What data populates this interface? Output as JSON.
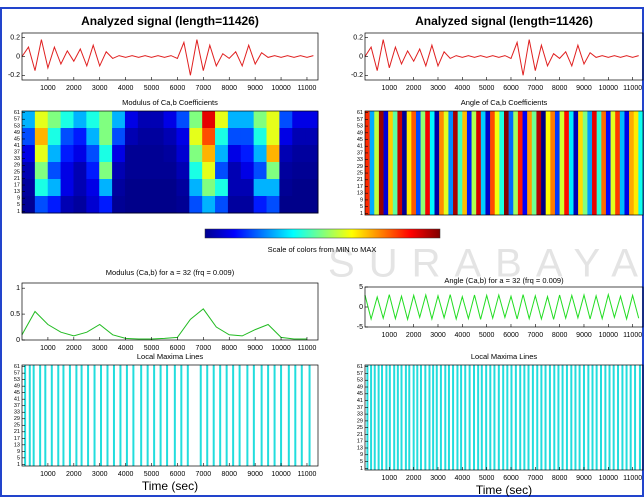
{
  "watermark": "SURABAYA",
  "colorbar_label": "Scale of colors from MIN to MAX",
  "chart_data": [
    {
      "type": "line",
      "title": "Analyzed signal (length=11426)",
      "color": "#e02020",
      "x": [
        0,
        250,
        500,
        750,
        1000,
        1250,
        1500,
        1750,
        2000,
        2250,
        2500,
        2750,
        3000,
        3250,
        3500,
        3750,
        4000,
        4250,
        4500,
        4750,
        5000,
        5250,
        5500,
        5750,
        6000,
        6250,
        6500,
        6750,
        7000,
        7250,
        7500,
        7750,
        8000,
        8250,
        8500,
        8750,
        9000,
        9250,
        9500,
        9750,
        10000,
        10250,
        10500,
        10750,
        11000,
        11250
      ],
      "values": [
        0,
        0.1,
        -0.15,
        0.18,
        -0.12,
        0.1,
        -0.08,
        0.06,
        -0.05,
        0.08,
        -0.1,
        0.12,
        -0.1,
        0.05,
        -0.02,
        0.01,
        -0.01,
        0.01,
        -0.01,
        0.01,
        -0.01,
        0.01,
        -0.01,
        0.01,
        -0.02,
        0.15,
        -0.2,
        0.18,
        -0.15,
        0.12,
        -0.1,
        0.03,
        -0.02,
        0.05,
        -0.1,
        0.12,
        -0.08,
        0.04,
        -0.01,
        0.01,
        -0.01,
        0.01,
        -0.01,
        0.01,
        -0.01,
        0.01
      ],
      "xlim": [
        0,
        11426
      ],
      "xticks": [
        1000,
        2000,
        3000,
        4000,
        5000,
        6000,
        7000,
        8000,
        9000,
        10000,
        11000
      ],
      "ylim": [
        -0.25,
        0.25
      ],
      "yticks": [
        -0.2,
        0,
        0.2
      ]
    },
    {
      "type": "heatmap",
      "title": "Modulus of Ca,b Coefficients",
      "z": [
        [
          0.3,
          0.6,
          0.5,
          0.4,
          0.3,
          0.4,
          0.5,
          0.3,
          0.1,
          0.05,
          0.05,
          0.1,
          0.2,
          0.5,
          0.9,
          0.6,
          0.3,
          0.3,
          0.5,
          0.6,
          0.2,
          0.1,
          0.1
        ],
        [
          0.2,
          0.7,
          0.4,
          0.2,
          0.15,
          0.3,
          0.5,
          0.2,
          0.05,
          0.03,
          0.03,
          0.05,
          0.1,
          0.6,
          0.8,
          0.4,
          0.2,
          0.2,
          0.4,
          0.6,
          0.1,
          0.05,
          0.05
        ],
        [
          0.1,
          0.6,
          0.3,
          0.15,
          0.1,
          0.2,
          0.4,
          0.1,
          0.02,
          0.02,
          0.02,
          0.03,
          0.08,
          0.5,
          0.7,
          0.3,
          0.1,
          0.15,
          0.3,
          0.7,
          0.05,
          0.03,
          0.03
        ],
        [
          0.05,
          0.5,
          0.2,
          0.1,
          0.05,
          0.15,
          0.5,
          0.05,
          0.02,
          0.02,
          0.02,
          0.02,
          0.05,
          0.4,
          0.6,
          0.2,
          0.05,
          0.1,
          0.2,
          0.5,
          0.03,
          0.02,
          0.02
        ],
        [
          0.03,
          0.4,
          0.3,
          0.1,
          0.05,
          0.1,
          0.3,
          0.03,
          0.01,
          0.01,
          0.01,
          0.01,
          0.03,
          0.3,
          0.5,
          0.4,
          0.05,
          0.05,
          0.3,
          0.3,
          0.02,
          0.01,
          0.01
        ],
        [
          0.02,
          0.2,
          0.15,
          0.05,
          0.03,
          0.08,
          0.15,
          0.02,
          0.01,
          0.01,
          0.01,
          0.01,
          0.02,
          0.2,
          0.3,
          0.2,
          0.03,
          0.03,
          0.15,
          0.2,
          0.01,
          0.01,
          0.01
        ]
      ],
      "ylim": [
        0,
        62
      ],
      "yticks": [
        1,
        5,
        9,
        13,
        17,
        21,
        25,
        29,
        33,
        37,
        41,
        45,
        49,
        53,
        57,
        61
      ]
    },
    {
      "type": "line",
      "title": "Analyzed signal (length=11426)",
      "color": "#e02020",
      "x": [
        0,
        250,
        500,
        750,
        1000,
        1250,
        1500,
        1750,
        2000,
        2250,
        2500,
        2750,
        3000,
        3250,
        3500,
        3750,
        4000,
        4250,
        4500,
        4750,
        5000,
        5250,
        5500,
        5750,
        6000,
        6250,
        6500,
        6750,
        7000,
        7250,
        7500,
        7750,
        8000,
        8250,
        8500,
        8750,
        9000,
        9250,
        9500,
        9750,
        10000,
        10250,
        10500,
        10750,
        11000,
        11250
      ],
      "values": [
        0,
        0.1,
        -0.15,
        0.18,
        -0.12,
        0.1,
        -0.08,
        0.06,
        -0.05,
        0.08,
        -0.1,
        0.12,
        -0.1,
        0.05,
        -0.02,
        0.01,
        -0.01,
        0.01,
        -0.01,
        0.01,
        -0.01,
        0.01,
        -0.01,
        0.01,
        -0.02,
        0.15,
        -0.2,
        0.18,
        -0.15,
        0.12,
        -0.1,
        0.03,
        -0.02,
        0.05,
        -0.1,
        0.12,
        -0.08,
        0.04,
        -0.01,
        0.01,
        -0.01,
        0.01,
        -0.01,
        0.01,
        -0.01,
        0.01
      ],
      "xlim": [
        0,
        11426
      ],
      "xticks": [
        1000,
        2000,
        3000,
        4000,
        5000,
        6000,
        7000,
        8000,
        9000,
        10000,
        11000
      ],
      "ylim": [
        -0.25,
        0.25
      ],
      "yticks": [
        -0.2,
        0,
        0.2
      ]
    },
    {
      "type": "stripes",
      "title": "Angle of Ca,b Coefficients",
      "values": [
        2.1,
        -1.3,
        0.4,
        3.0,
        -2.6,
        1.1,
        -0.2,
        2.7,
        -3.0,
        0.9,
        1.8,
        -1.9,
        0.1,
        2.4,
        -0.8,
        -2.9,
        1.5,
        0.6,
        -1.5,
        2.9,
        -0.4,
        1.2,
        -2.2,
        0.3,
        2.6,
        -1.1,
        -2.7,
        1.9,
        0.7,
        -0.6,
        3.1,
        -1.7,
        0.2,
        2.2,
        -2.4,
        1.4,
        -0.1,
        2.8,
        -3.1,
        0.8,
        1.6,
        -2.0,
        0.5,
        2.3,
        -0.9,
        -2.8,
        1.0,
        0.0,
        -1.4,
        2.5,
        -0.5,
        1.7,
        -2.3,
        0.6,
        2.0,
        -1.2,
        -2.5,
        1.3,
        0.9,
        -0.7
      ],
      "ylim": [
        0,
        62
      ],
      "yticks": [
        1,
        5,
        9,
        13,
        17,
        21,
        25,
        29,
        33,
        37,
        41,
        45,
        49,
        53,
        57,
        61
      ]
    },
    {
      "type": "line",
      "title": "Modulus (Ca,b) for a = 32  (frq =  0.009)",
      "color": "#22bb22",
      "x": [
        0,
        500,
        1000,
        1500,
        2000,
        2500,
        3000,
        3500,
        4000,
        4500,
        5000,
        5500,
        6000,
        6500,
        7000,
        7500,
        8000,
        8500,
        9000,
        9500,
        10000,
        10500,
        11000
      ],
      "values": [
        0.1,
        0.55,
        0.3,
        0.15,
        0.08,
        0.15,
        0.3,
        0.1,
        0.03,
        0.02,
        0.02,
        0.03,
        0.05,
        0.4,
        0.6,
        0.25,
        0.1,
        0.08,
        0.2,
        0.3,
        0.05,
        0.02,
        0.02
      ],
      "xlim": [
        0,
        11426
      ],
      "xticks": [
        1000,
        2000,
        3000,
        4000,
        5000,
        6000,
        7000,
        8000,
        9000,
        10000,
        11000
      ],
      "ylim": [
        0,
        1.1
      ],
      "yticks": [
        0,
        0.5,
        1
      ]
    },
    {
      "type": "eventplot",
      "title": "Local Maxima Lines",
      "color": "#22dddd",
      "xlabel": "Time (sec)",
      "positions": [
        120,
        300,
        450,
        700,
        900,
        1150,
        1400,
        1600,
        1850,
        2100,
        2300,
        2550,
        2800,
        3050,
        3300,
        3550,
        3800,
        4050,
        4300,
        4600,
        4850,
        5100,
        5350,
        5600,
        5900,
        6150,
        6400,
        6900,
        7150,
        7400,
        7650,
        7900,
        8150,
        8400,
        8700,
        8950,
        9250,
        9500,
        9750,
        10000,
        10300,
        10550,
        10800,
        11100
      ],
      "xlim": [
        0,
        11426
      ],
      "xticks": [
        1000,
        2000,
        3000,
        4000,
        5000,
        6000,
        7000,
        8000,
        9000,
        10000,
        11000
      ],
      "ylim": [
        0,
        62
      ],
      "yticks": [
        1,
        5,
        9,
        13,
        17,
        21,
        25,
        29,
        33,
        37,
        41,
        45,
        49,
        53,
        57,
        61
      ]
    },
    {
      "type": "line",
      "title": "Angle (Ca,b) for a = 32  (frq =  0.009)",
      "color": "#22dd22",
      "x": [
        0,
        250,
        500,
        750,
        1000,
        1250,
        1500,
        1750,
        2000,
        2250,
        2500,
        2750,
        3000,
        3250,
        3500,
        3750,
        4000,
        4250,
        4500,
        4750,
        5000,
        5250,
        5500,
        5750,
        6000,
        6250,
        6500,
        6750,
        7000,
        7250,
        7500,
        7750,
        8000,
        8250,
        8500,
        8750,
        9000,
        9250,
        9500,
        9750,
        10000,
        10250,
        10500,
        10750,
        11000,
        11250
      ],
      "values": [
        3,
        -3,
        2.5,
        -2.8,
        3.1,
        -2.9,
        2.7,
        -3.1,
        2.9,
        -2.6,
        3,
        -3,
        2.8,
        -2.7,
        3.1,
        -3,
        2.6,
        -2.9,
        3,
        -3.1,
        2.9,
        -2.8,
        3,
        -2.6,
        2.7,
        -3,
        3.1,
        -2.9,
        2.8,
        -3,
        2.6,
        -3.1,
        3,
        -2.8,
        2.9,
        -2.7,
        3,
        -3,
        2.8,
        -2.9,
        3.1,
        -2.6,
        2.7,
        -3,
        2.9,
        -2.8
      ],
      "xlim": [
        0,
        11426
      ],
      "xticks": [
        1000,
        2000,
        3000,
        4000,
        5000,
        6000,
        7000,
        8000,
        9000,
        10000,
        11000
      ],
      "ylim": [
        -5,
        5
      ],
      "yticks": [
        -5,
        0,
        5
      ]
    },
    {
      "type": "eventplot",
      "title": "Local Maxima Lines",
      "color": "#22dddd",
      "xlabel": "Time (sec)",
      "positions": [
        100,
        250,
        400,
        560,
        700,
        880,
        1020,
        1200,
        1350,
        1500,
        1680,
        1820,
        2000,
        2150,
        2300,
        2480,
        2650,
        2800,
        2950,
        3120,
        3300,
        3450,
        3620,
        3800,
        3950,
        4120,
        4300,
        4480,
        4650,
        4800,
        4980,
        5150,
        5320,
        5500,
        5680,
        5850,
        6020,
        6200,
        6380,
        6550,
        6720,
        6900,
        7080,
        7250,
        7420,
        7600,
        7780,
        7950,
        8120,
        8300,
        8480,
        8650,
        8820,
        9000,
        9180,
        9350,
        9520,
        9700,
        9880,
        10050,
        10220,
        10400,
        10580,
        10750,
        10920,
        11100,
        11300
      ],
      "xlim": [
        0,
        11426
      ],
      "xticks": [
        1000,
        2000,
        3000,
        4000,
        5000,
        6000,
        7000,
        8000,
        9000,
        10000,
        11000
      ],
      "ylim": [
        0,
        62
      ],
      "yticks": [
        1,
        5,
        9,
        13,
        17,
        21,
        25,
        29,
        33,
        37,
        41,
        45,
        49,
        53,
        57,
        61
      ]
    }
  ]
}
